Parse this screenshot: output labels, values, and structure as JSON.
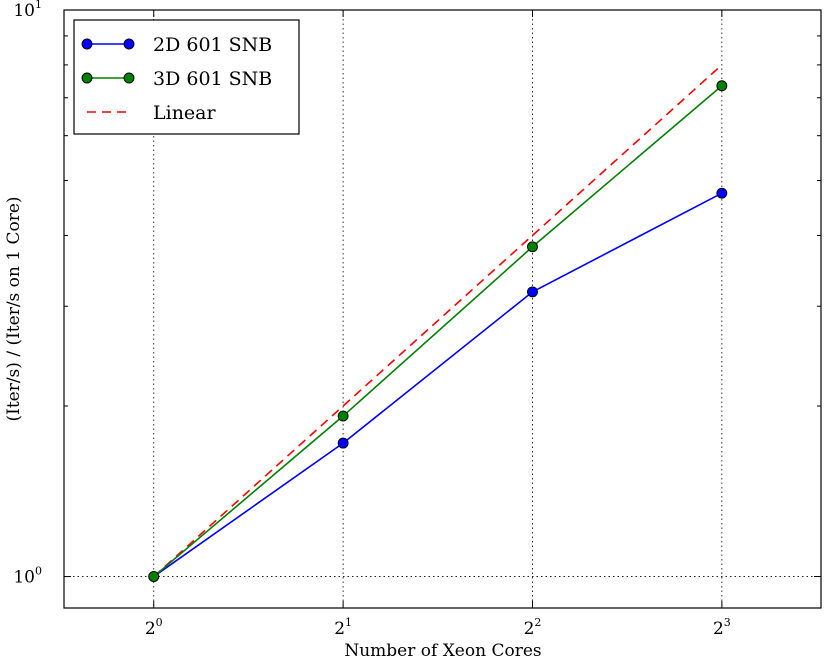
{
  "chart_data": {
    "type": "line",
    "xlabel": "Number of Xeon Cores",
    "ylabel": "(Iter/s) / (Iter/s on 1 Core)",
    "x_scale": "log2",
    "y_scale": "log10",
    "xlim": [
      0.72,
      11.5
    ],
    "ylim": [
      0.88,
      10
    ],
    "x": [
      1,
      2,
      4,
      8
    ],
    "x_ticks": [
      {
        "base": "2",
        "exp": "0",
        "value": 1
      },
      {
        "base": "2",
        "exp": "1",
        "value": 2
      },
      {
        "base": "2",
        "exp": "2",
        "value": 4
      },
      {
        "base": "2",
        "exp": "3",
        "value": 8
      }
    ],
    "y_ticks": [
      {
        "base": "10",
        "exp": "0",
        "value": 1
      },
      {
        "base": "10",
        "exp": "1",
        "value": 10
      }
    ],
    "series": [
      {
        "name": "2D 601 SNB",
        "values": [
          1.0,
          1.72,
          3.18,
          4.75
        ],
        "color": "#0000ff",
        "style": "solid",
        "marker": "circle"
      },
      {
        "name": "3D 601 SNB",
        "values": [
          1.0,
          1.92,
          3.82,
          7.35
        ],
        "color": "#008000",
        "style": "solid",
        "marker": "circle"
      },
      {
        "name": "Linear",
        "values": [
          1,
          2,
          4,
          8
        ],
        "color": "#ff0000",
        "style": "dashed",
        "marker": "none"
      }
    ],
    "grid": true,
    "grid_style": "dotted",
    "legend_position": "top-left"
  }
}
